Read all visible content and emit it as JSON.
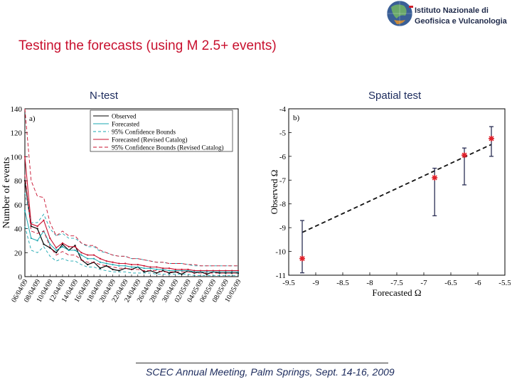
{
  "header": {
    "logo_line1": "Istituto Nazionale di",
    "logo_line2": "Geofisica e Vulcanologia"
  },
  "slide_title": "Testing the forecasts (using M 2.5+ events)",
  "panels": {
    "left_label": "N-test",
    "right_label": "Spatial test"
  },
  "footer": "SCEC Annual Meeting, Palm Springs, Sept. 14-16, 2009",
  "colors": {
    "title": "#c8102e",
    "label": "#1b2a5c",
    "observed": "#000000",
    "forecasted": "#1aa7b0",
    "conf95": "#1aa7b0",
    "revised": "#c8102e",
    "revised_conf": "#c8102e",
    "errorbar": "#2b2f55",
    "point": "#e0202a"
  },
  "chart_data": [
    {
      "type": "line",
      "panel_tag": "a)",
      "title": "N-test",
      "ylabel": "Number of events",
      "xlabel": "",
      "ylim": [
        0,
        140
      ],
      "yticks": [
        0,
        20,
        40,
        60,
        80,
        100,
        120,
        140
      ],
      "x": [
        "06/04/09",
        "",
        "08/04/09",
        "",
        "10/04/09",
        "",
        "12/04/09",
        "",
        "14/04/09",
        "",
        "16/04/09",
        "",
        "18/04/09",
        "",
        "20/04/09",
        "",
        "22/04/09",
        "",
        "24/04/09",
        "",
        "26/04/09",
        "",
        "28/04/09",
        "",
        "30/04/09",
        "",
        "02/05/09",
        "",
        "04/05/09",
        "",
        "06/05/09",
        "",
        "08/05/09",
        "",
        "10/05/09"
      ],
      "x_tick_labels": [
        "06/04/09",
        "08/04/09",
        "10/04/09",
        "12/04/09",
        "14/04/09",
        "16/04/09",
        "18/04/09",
        "20/04/09",
        "22/04/09",
        "24/04/09",
        "26/04/09",
        "28/04/09",
        "30/04/09",
        "02/05/09",
        "04/05/09",
        "06/05/09",
        "08/05/09",
        "10/05/09"
      ],
      "legend": [
        "Observed",
        "Forecasted",
        "95% Confidence Bounds",
        "Forecasted (Revised Catalog)",
        "95% Confidence Bounds (Revised Catalog)"
      ],
      "series": [
        {
          "name": "Observed",
          "style": "solid",
          "values": [
            80,
            42,
            40,
            27,
            24,
            20,
            27,
            22,
            26,
            14,
            10,
            12,
            7,
            9,
            6,
            5,
            7,
            6,
            8,
            4,
            5,
            3,
            5,
            3,
            4,
            2,
            5,
            3,
            4,
            2,
            4,
            3,
            3,
            3,
            3
          ]
        },
        {
          "name": "Forecasted",
          "style": "solid-dot",
          "values": [
            55,
            32,
            30,
            38,
            27,
            22,
            25,
            22,
            22,
            18,
            15,
            15,
            12,
            11,
            10,
            9,
            9,
            8,
            8,
            7,
            7,
            6,
            6,
            5,
            5,
            5,
            5,
            4,
            4,
            4,
            4,
            4,
            4,
            4,
            4
          ]
        },
        {
          "name": "95% Confidence Bounds (upper)",
          "style": "dashed",
          "values": [
            70,
            45,
            45,
            52,
            40,
            34,
            36,
            32,
            32,
            28,
            25,
            25,
            21,
            20,
            18,
            17,
            17,
            15,
            15,
            14,
            13,
            12,
            12,
            11,
            11,
            11,
            10,
            9,
            9,
            9,
            9,
            9,
            9,
            9,
            9
          ]
        },
        {
          "name": "95% Confidence Bounds (lower)",
          "style": "dashed",
          "values": [
            42,
            22,
            20,
            25,
            17,
            13,
            15,
            13,
            13,
            10,
            8,
            8,
            6,
            5,
            4,
            4,
            4,
            3,
            3,
            3,
            3,
            2,
            2,
            2,
            2,
            2,
            2,
            1,
            1,
            1,
            1,
            1,
            1,
            1,
            1
          ]
        },
        {
          "name": "Forecasted (Revised Catalog)",
          "style": "solid",
          "values": [
            100,
            44,
            42,
            47,
            32,
            24,
            28,
            25,
            25,
            20,
            18,
            18,
            15,
            13,
            12,
            11,
            11,
            10,
            10,
            9,
            8,
            8,
            7,
            7,
            6,
            6,
            6,
            5,
            5,
            5,
            5,
            5,
            5,
            5,
            5
          ]
        },
        {
          "name": "95% Confidence Bounds (Revised Catalog, upper)",
          "style": "dashed",
          "values": [
            140,
            80,
            67,
            66,
            45,
            34,
            38,
            34,
            34,
            28,
            26,
            26,
            22,
            20,
            18,
            17,
            17,
            15,
            15,
            14,
            13,
            12,
            12,
            11,
            11,
            11,
            10,
            10,
            9,
            9,
            9,
            9,
            9,
            9,
            9
          ]
        },
        {
          "name": "95% Confidence Bounds (Revised Catalog, lower)",
          "style": "dashed",
          "values": [
            85,
            38,
            36,
            38,
            25,
            18,
            21,
            18,
            18,
            14,
            12,
            12,
            10,
            9,
            8,
            7,
            7,
            6,
            6,
            5,
            5,
            5,
            4,
            4,
            4,
            4,
            4,
            3,
            3,
            3,
            3,
            3,
            3,
            3,
            3
          ]
        }
      ]
    },
    {
      "type": "scatter",
      "panel_tag": "b)",
      "title": "Spatial test",
      "xlabel": "Forecasted Ω",
      "ylabel": "Observed Ω",
      "xlim": [
        -9.5,
        -5.5
      ],
      "ylim": [
        -11,
        -4
      ],
      "xticks": [
        -9.5,
        -9,
        -8.5,
        -8,
        -7.5,
        -7,
        -6.5,
        -6,
        -5.5
      ],
      "yticks": [
        -11,
        -10,
        -9,
        -8,
        -7,
        -6,
        -5,
        -4
      ],
      "points": [
        {
          "x": -9.25,
          "y": -10.3,
          "low": -10.9,
          "high": -8.7
        },
        {
          "x": -6.8,
          "y": -6.9,
          "low": -8.5,
          "high": -6.5
        },
        {
          "x": -6.25,
          "y": -5.95,
          "low": -7.2,
          "high": -5.65
        },
        {
          "x": -5.75,
          "y": -5.25,
          "low": -6.0,
          "high": -4.75
        }
      ],
      "fit_line": {
        "x": [
          -9.25,
          -5.75
        ],
        "y": [
          -9.2,
          -5.5
        ]
      }
    }
  ]
}
